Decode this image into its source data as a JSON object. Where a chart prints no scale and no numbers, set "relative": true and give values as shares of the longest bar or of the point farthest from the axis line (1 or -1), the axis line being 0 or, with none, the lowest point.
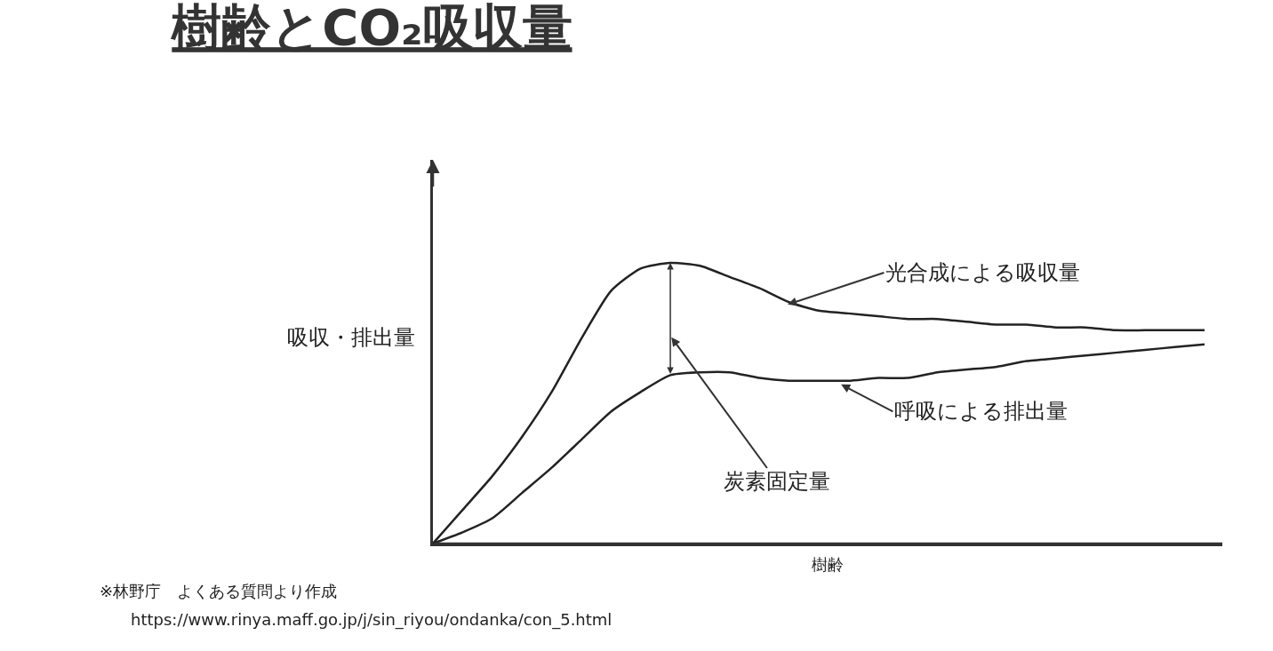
{
  "chart_data": {
    "type": "line",
    "title": "樹齢とCO₂吸収量",
    "xlabel": "樹齢",
    "ylabel": "吸収・排出量",
    "relative": true,
    "categories": [
      null,
      null,
      null,
      null,
      null,
      null,
      null,
      null,
      null,
      null,
      null,
      null,
      null,
      null,
      null,
      null,
      null,
      null,
      null,
      null,
      null,
      null,
      null,
      null,
      null,
      null,
      null
    ],
    "series": [
      {
        "color": "#222222",
        "values": [
          0,
          0.12,
          0.24,
          0.38,
          0.54,
          0.73,
          0.9,
          0.98,
          1,
          0.99,
          0.95,
          0.91,
          0.86,
          0.83,
          0.82,
          0.81,
          0.8,
          0.8,
          0.79,
          0.78,
          0.78,
          0.77,
          0.77,
          0.76,
          0.76,
          0.76,
          0.76
        ]
      },
      {
        "color": "#222222",
        "values": [
          0,
          0.04,
          0.09,
          0.18,
          0.27,
          0.37,
          0.47,
          0.54,
          0.6,
          0.61,
          0.61,
          0.59,
          0.58,
          0.58,
          0.58,
          0.59,
          0.59,
          0.61,
          0.62,
          0.63,
          0.65,
          0.66,
          0.67,
          0.68,
          0.69,
          0.7,
          0.71
        ]
      }
    ],
    "annotations": [
      "光合成による吸収量",
      "呼吸による排出量",
      "炭素固定量",
      "※林野庁　よくある質問より作成",
      "https://www.rinya.maff.go.jp/j/sin_riyou/ondanka/con_5.html"
    ],
    "marker": "none",
    "line_style": "solid"
  }
}
